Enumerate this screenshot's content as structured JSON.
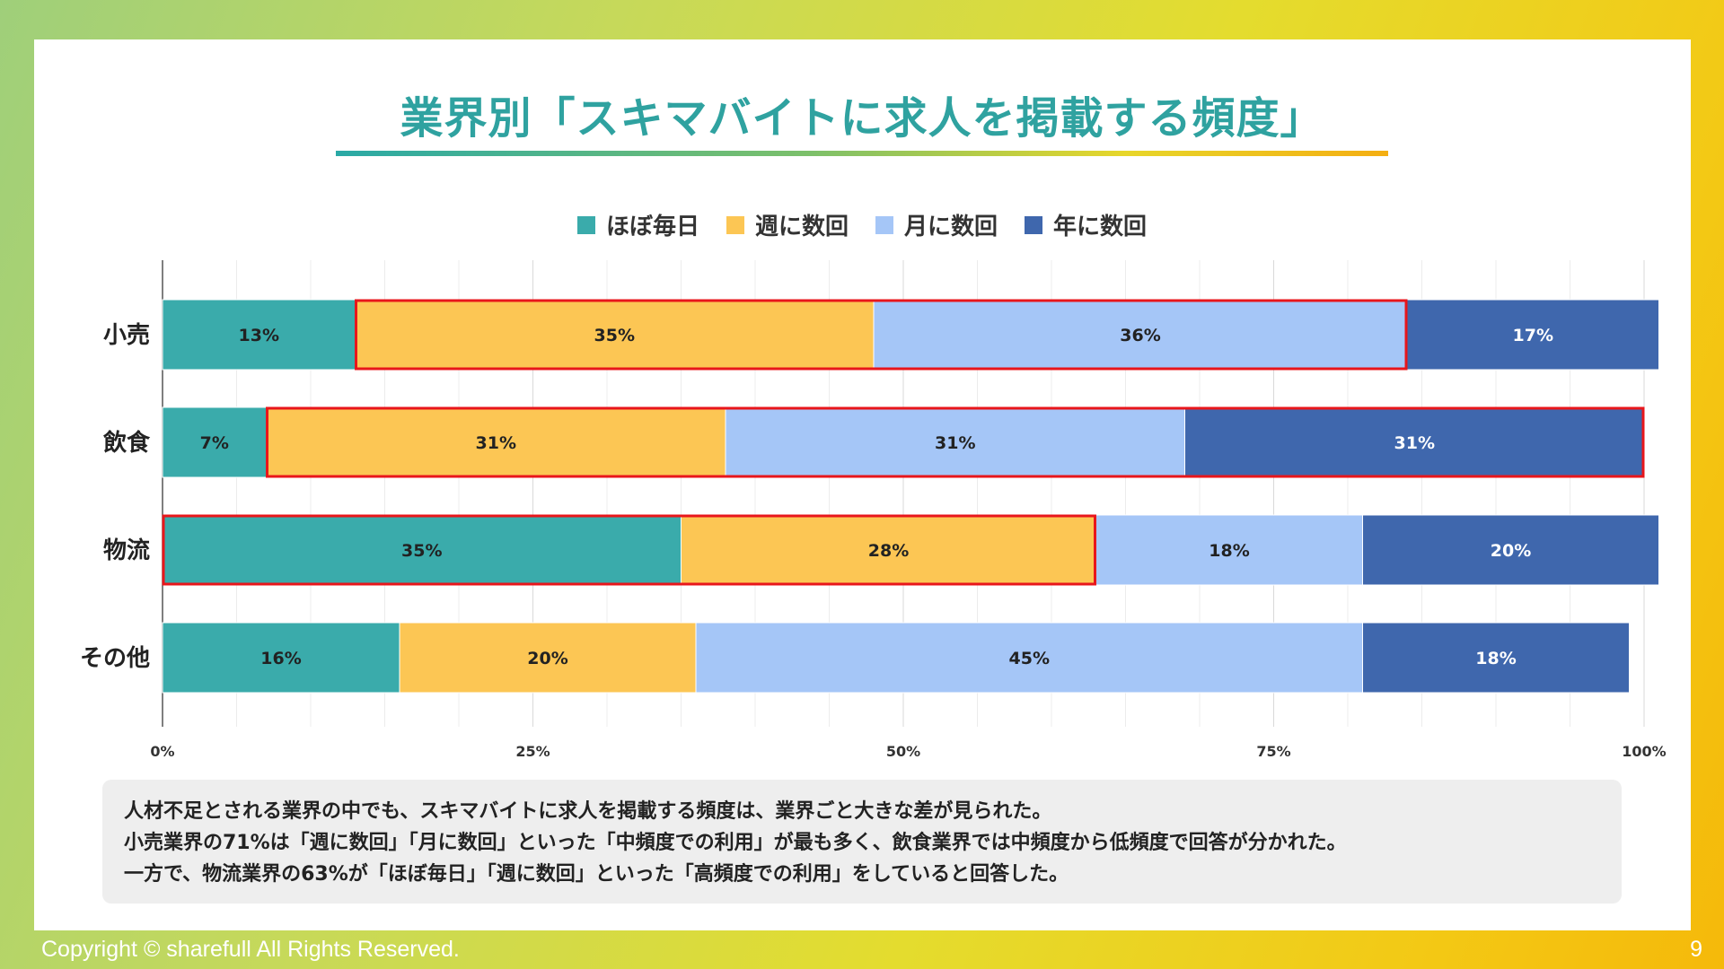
{
  "slide": {
    "title": "業界別「スキマバイトに求人を掲載する頻度」",
    "page_number": "9",
    "copyright": "Copyright © sharefull All Rights Reserved.",
    "summary_lines": [
      "人材不足とされる業界の中でも、スキマバイトに求人を掲載する頻度は、業界ごと大きな差が見られた。",
      "小売業界の71%は「週に数回」「月に数回」といった「中頻度での利用」が最も多く、飲食業界では中頻度から低頻度で回答が分かれた。",
      "一方で、物流業界の63%が「ほぼ毎日」「週に数回」といった「高頻度での利用」をしていると回答した。"
    ]
  },
  "chart_data": {
    "type": "bar",
    "orientation": "horizontal",
    "stacked": true,
    "categories": [
      "小売",
      "飲食",
      "物流",
      "その他"
    ],
    "series": [
      {
        "name": "ほぼ毎日",
        "color": "#3aabab",
        "values": [
          13,
          7,
          35,
          16
        ]
      },
      {
        "name": "週に数回",
        "color": "#fcc654",
        "values": [
          35,
          31,
          28,
          20
        ]
      },
      {
        "name": "月に数回",
        "color": "#a5c6f7",
        "values": [
          36,
          31,
          18,
          45
        ]
      },
      {
        "name": "年に数回",
        "color": "#3f67ad",
        "values": [
          17,
          31,
          20,
          18
        ]
      }
    ],
    "xlim": [
      0,
      100
    ],
    "xticks": [
      "0%",
      "25%",
      "50%",
      "75%",
      "100%"
    ],
    "grid": true,
    "legend": "top-center",
    "highlights": [
      {
        "category": "小売",
        "from_series": 1,
        "to_series": 2,
        "color": "#e8161b"
      },
      {
        "category": "飲食",
        "from_series": 1,
        "to_series": 3,
        "color": "#e8161b"
      },
      {
        "category": "物流",
        "from_series": 0,
        "to_series": 1,
        "color": "#e8161b"
      }
    ]
  }
}
